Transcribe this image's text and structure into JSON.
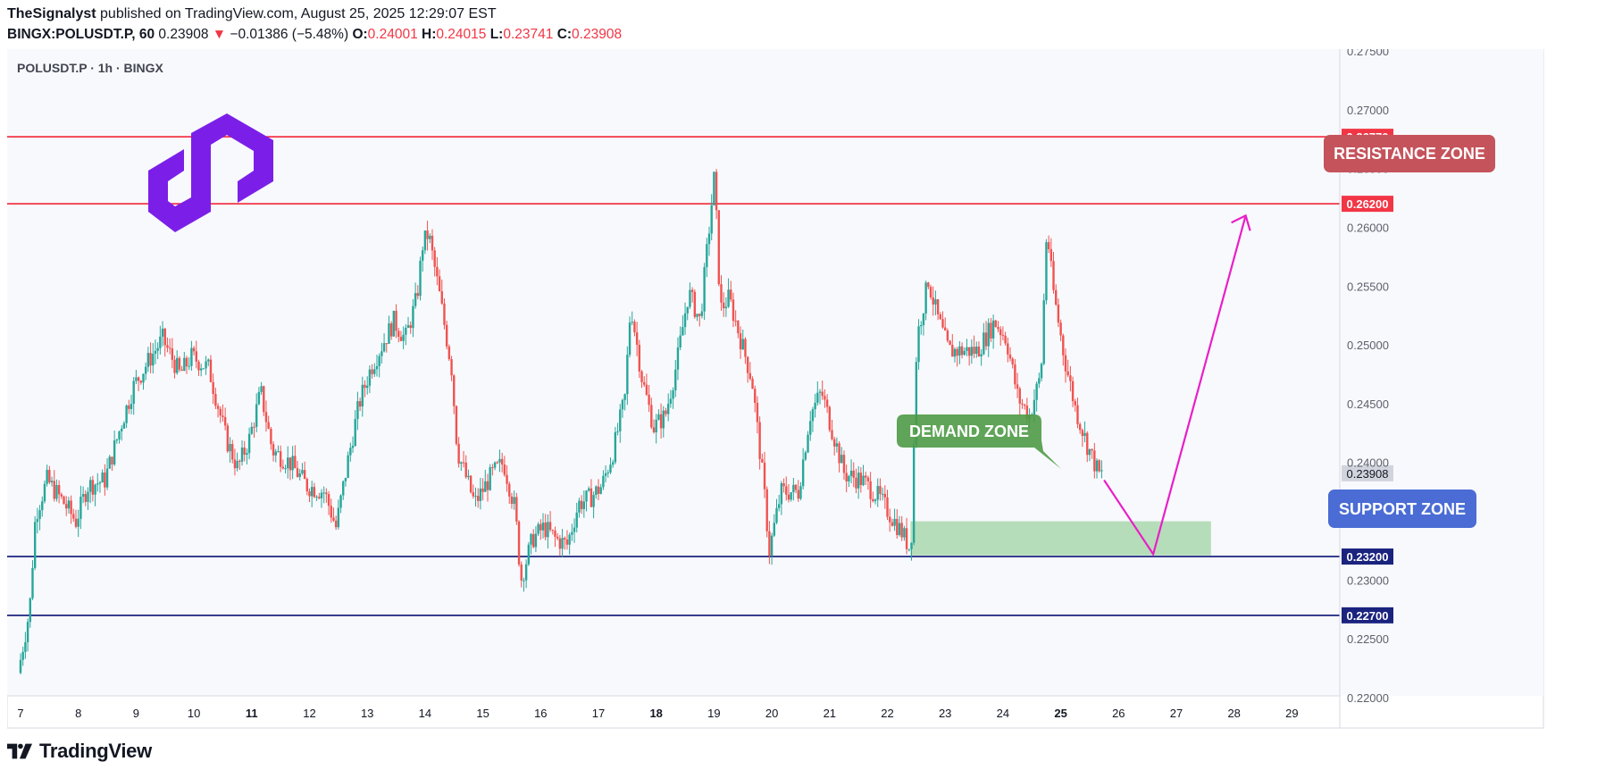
{
  "header": {
    "author": "TheSignalyst",
    "published_text": "published on TradingView.com, August 25, 2025 12:29:07 EST"
  },
  "ohlc": {
    "symbol_line": "BINGX:POLUSDT.P, 60",
    "last": "0.23908",
    "change": "−0.01386 (−5.48%)",
    "o_label": "O:",
    "o": "0.24001",
    "h_label": "H:",
    "h": "0.24015",
    "l_label": "L:",
    "l": "0.23741",
    "c_label": "C:",
    "c": "0.23908"
  },
  "chart_label": "POLUSDT.P · 1h · BINGX",
  "footer": {
    "brand": "TradingView"
  },
  "colors": {
    "up": "#26a69a",
    "down": "#ef5350",
    "resistance": "#f23645",
    "support": "#1a237e",
    "demand": "#4caf50",
    "arrow": "#e91ec8",
    "logo": "#7b1fe8"
  },
  "chart_data": {
    "type": "candlestick",
    "title": "POLUSDT.P · 1h · BINGX",
    "ylim": [
      0.22,
      0.275
    ],
    "y_ticks": [
      "0.27500",
      "0.27000",
      "0.26500",
      "0.26000",
      "0.25500",
      "0.25000",
      "0.24500",
      "0.24000",
      "0.23500",
      "0.23000",
      "0.22500",
      "0.22000"
    ],
    "x_ticks": [
      {
        "label": "7",
        "bold": false
      },
      {
        "label": "8",
        "bold": false
      },
      {
        "label": "9",
        "bold": false
      },
      {
        "label": "10",
        "bold": false
      },
      {
        "label": "11",
        "bold": true
      },
      {
        "label": "12",
        "bold": false
      },
      {
        "label": "13",
        "bold": false
      },
      {
        "label": "14",
        "bold": false
      },
      {
        "label": "15",
        "bold": false
      },
      {
        "label": "16",
        "bold": false
      },
      {
        "label": "17",
        "bold": false
      },
      {
        "label": "18",
        "bold": true
      },
      {
        "label": "19",
        "bold": false
      },
      {
        "label": "20",
        "bold": false
      },
      {
        "label": "21",
        "bold": false
      },
      {
        "label": "22",
        "bold": false
      },
      {
        "label": "23",
        "bold": false
      },
      {
        "label": "24",
        "bold": false
      },
      {
        "label": "25",
        "bold": true
      },
      {
        "label": "26",
        "bold": false
      },
      {
        "label": "27",
        "bold": false
      },
      {
        "label": "28",
        "bold": false
      },
      {
        "label": "29",
        "bold": false
      }
    ],
    "price_path": [
      [
        7.0,
        0.2221
      ],
      [
        7.2,
        0.2275
      ],
      [
        7.3,
        0.2355
      ],
      [
        7.5,
        0.2385
      ],
      [
        7.8,
        0.2365
      ],
      [
        8.0,
        0.235
      ],
      [
        8.2,
        0.238
      ],
      [
        8.5,
        0.2385
      ],
      [
        8.8,
        0.2435
      ],
      [
        9.0,
        0.2465
      ],
      [
        9.3,
        0.249
      ],
      [
        9.5,
        0.2505
      ],
      [
        9.8,
        0.2475
      ],
      [
        10.0,
        0.249
      ],
      [
        10.3,
        0.248
      ],
      [
        10.6,
        0.242
      ],
      [
        10.8,
        0.2395
      ],
      [
        11.0,
        0.242
      ],
      [
        11.2,
        0.246
      ],
      [
        11.4,
        0.241
      ],
      [
        11.7,
        0.24
      ],
      [
        12.0,
        0.238
      ],
      [
        12.3,
        0.2375
      ],
      [
        12.5,
        0.2345
      ],
      [
        12.7,
        0.24
      ],
      [
        12.9,
        0.245
      ],
      [
        13.1,
        0.248
      ],
      [
        13.3,
        0.25
      ],
      [
        13.5,
        0.252
      ],
      [
        13.7,
        0.2505
      ],
      [
        13.9,
        0.254
      ],
      [
        14.0,
        0.2585
      ],
      [
        14.1,
        0.2595
      ],
      [
        14.3,
        0.254
      ],
      [
        14.5,
        0.248
      ],
      [
        14.6,
        0.241
      ],
      [
        14.9,
        0.2365
      ],
      [
        15.2,
        0.239
      ],
      [
        15.4,
        0.24
      ],
      [
        15.6,
        0.236
      ],
      [
        15.7,
        0.23
      ],
      [
        15.9,
        0.2335
      ],
      [
        16.1,
        0.2345
      ],
      [
        16.3,
        0.2335
      ],
      [
        16.5,
        0.233
      ],
      [
        16.7,
        0.2365
      ],
      [
        16.9,
        0.237
      ],
      [
        17.1,
        0.238
      ],
      [
        17.3,
        0.241
      ],
      [
        17.5,
        0.2455
      ],
      [
        17.6,
        0.2535
      ],
      [
        17.8,
        0.247
      ],
      [
        18.0,
        0.243
      ],
      [
        18.2,
        0.244
      ],
      [
        18.4,
        0.2485
      ],
      [
        18.6,
        0.2545
      ],
      [
        18.8,
        0.252
      ],
      [
        18.95,
        0.2595
      ],
      [
        19.05,
        0.2645
      ],
      [
        19.15,
        0.253
      ],
      [
        19.3,
        0.254
      ],
      [
        19.5,
        0.2505
      ],
      [
        19.7,
        0.247
      ],
      [
        19.9,
        0.238
      ],
      [
        20.0,
        0.2325
      ],
      [
        20.2,
        0.2375
      ],
      [
        20.5,
        0.2375
      ],
      [
        20.7,
        0.244
      ],
      [
        20.9,
        0.246
      ],
      [
        21.1,
        0.2425
      ],
      [
        21.3,
        0.239
      ],
      [
        21.6,
        0.2385
      ],
      [
        21.9,
        0.237
      ],
      [
        22.1,
        0.2355
      ],
      [
        22.3,
        0.234
      ],
      [
        22.45,
        0.2325
      ],
      [
        22.55,
        0.2505
      ],
      [
        22.75,
        0.2555
      ],
      [
        22.9,
        0.2525
      ],
      [
        23.1,
        0.2495
      ],
      [
        23.3,
        0.2495
      ],
      [
        23.6,
        0.2495
      ],
      [
        23.9,
        0.252
      ],
      [
        24.1,
        0.2505
      ],
      [
        24.3,
        0.2455
      ],
      [
        24.5,
        0.244
      ],
      [
        24.7,
        0.2475
      ],
      [
        24.8,
        0.26
      ],
      [
        24.9,
        0.255
      ],
      [
        25.1,
        0.249
      ],
      [
        25.3,
        0.2445
      ],
      [
        25.5,
        0.2415
      ],
      [
        25.7,
        0.239
      ]
    ],
    "levels": [
      {
        "label": "0.26770",
        "value": 0.2677,
        "role": "resistance"
      },
      {
        "label": "0.26200",
        "value": 0.262,
        "role": "resistance"
      },
      {
        "label": "0.23200",
        "value": 0.232,
        "role": "support"
      },
      {
        "label": "0.22700",
        "value": 0.227,
        "role": "support"
      }
    ],
    "current_price": {
      "label": "0.23908",
      "value": 0.23908
    },
    "demand_zone": {
      "label": "DEMAND ZONE",
      "x_from": 22.4,
      "x_to": 27.6,
      "y_from": 0.2321,
      "y_to": 0.235
    },
    "resistance_label": "RESISTANCE ZONE",
    "support_label": "SUPPORT ZONE",
    "projection": [
      [
        25.75,
        0.2385
      ],
      [
        26.6,
        0.2322
      ],
      [
        28.2,
        0.261
      ]
    ]
  }
}
